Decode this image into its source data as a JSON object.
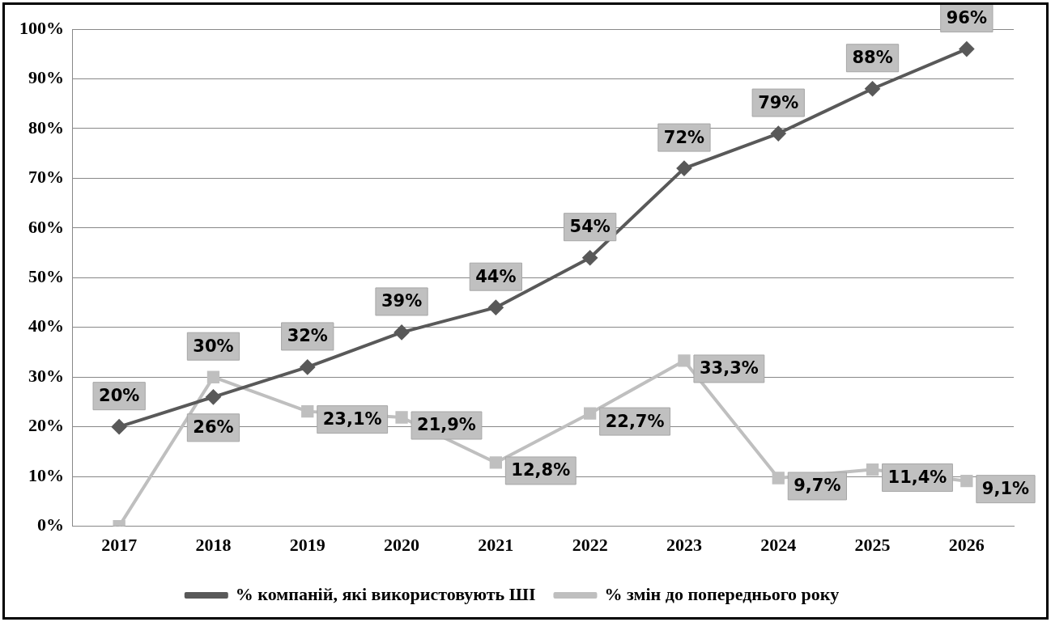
{
  "chart_data": {
    "type": "line",
    "categories": [
      "2017",
      "2018",
      "2019",
      "2020",
      "2021",
      "2022",
      "2023",
      "2024",
      "2025",
      "2026"
    ],
    "series": [
      {
        "name": "% компаній, які використовують ШІ",
        "color": "#595959",
        "marker": "diamond",
        "values": [
          20,
          26,
          32,
          39,
          44,
          54,
          72,
          79,
          88,
          96
        ],
        "value_labels": [
          "20%",
          "26%",
          "32%",
          "39%",
          "44%",
          "54%",
          "72%",
          "79%",
          "88%",
          "96%"
        ]
      },
      {
        "name": "% змін до попереднього року",
        "color": "#bfbfbf",
        "marker": "square",
        "values": [
          0,
          30,
          23.1,
          21.9,
          12.8,
          22.7,
          33.3,
          9.7,
          11.4,
          9.1
        ],
        "value_labels": [
          null,
          "30%",
          "23,1%",
          "21,9%",
          "12,8%",
          "22,7%",
          "33,3%",
          "9,7%",
          "11,4%",
          "9,1%"
        ]
      }
    ],
    "ylim": [
      0,
      100
    ],
    "yticks": [
      {
        "value": 0,
        "label": "0%"
      },
      {
        "value": 10,
        "label": "10%"
      },
      {
        "value": 20,
        "label": "20%"
      },
      {
        "value": 30,
        "label": "30%"
      },
      {
        "value": 40,
        "label": "40%"
      },
      {
        "value": 50,
        "label": "50%"
      },
      {
        "value": 60,
        "label": "60%"
      },
      {
        "value": 70,
        "label": "70%"
      },
      {
        "value": 80,
        "label": "80%"
      },
      {
        "value": 90,
        "label": "90%"
      },
      {
        "value": 100,
        "label": "100%"
      }
    ],
    "grid": "y",
    "legend": "bottom",
    "line_style": "solid"
  }
}
